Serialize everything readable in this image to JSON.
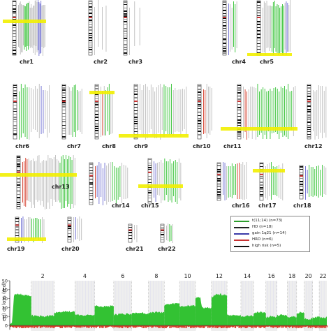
{
  "karyogram": {
    "chromosomes": [
      {
        "id": "chr1",
        "label": "chr1",
        "x": 4,
        "y": 0,
        "w": 62,
        "h": 80,
        "ly": 84,
        "lx": 28,
        "seed": 1,
        "tracks": 28,
        "hl": 28,
        "green": [
          0.2,
          0.4
        ],
        "blue": [
          0.72,
          0.88
        ]
      },
      {
        "id": "chr2",
        "label": "chr2",
        "x": 118,
        "y": 0,
        "w": 40,
        "h": 80,
        "ly": 84,
        "lx": 134,
        "seed": 2,
        "tracks": 4,
        "hl": -1,
        "green": [],
        "blue": []
      },
      {
        "id": "chr3",
        "label": "chr3",
        "x": 168,
        "y": 0,
        "w": 40,
        "h": 80,
        "ly": 84,
        "lx": 184,
        "seed": 3,
        "tracks": 3,
        "hl": -1,
        "green": [],
        "blue": []
      },
      {
        "id": "chr4",
        "label": "chr4",
        "x": 312,
        "y": 0,
        "w": 30,
        "h": 80,
        "ly": 84,
        "lx": 332,
        "seed": 4,
        "tracks": 6,
        "hl": -1,
        "green": [
          0.6,
          0.8
        ],
        "blue": [
          0.0,
          0.15
        ]
      },
      {
        "id": "chr5",
        "label": "chr5",
        "x": 354,
        "y": 0,
        "w": 64,
        "h": 80,
        "ly": 84,
        "lx": 372,
        "seed": 5,
        "tracks": 22,
        "hl": 76,
        "green": [
          0.3,
          0.8
        ],
        "blue": [
          0.85,
          0.95
        ]
      },
      {
        "id": "chr6",
        "label": "chr6",
        "x": 4,
        "y": 120,
        "w": 70,
        "h": 80,
        "ly": 205,
        "lx": 22,
        "seed": 6,
        "tracks": 16,
        "hl": -1,
        "green": [
          0.0,
          0.3
        ],
        "blue": [
          0.7,
          0.8
        ],
        "red": [
          0.05,
          0.15
        ]
      },
      {
        "id": "chr7",
        "label": "chr7",
        "x": 80,
        "y": 120,
        "w": 40,
        "h": 80,
        "ly": 205,
        "lx": 96,
        "seed": 7,
        "tracks": 10,
        "hl": -1,
        "green": [
          0.3,
          0.7
        ],
        "blue": []
      },
      {
        "id": "chr8",
        "label": "chr8",
        "x": 128,
        "y": 120,
        "w": 36,
        "h": 80,
        "ly": 205,
        "lx": 146,
        "seed": 8,
        "tracks": 8,
        "hl": 10,
        "green": [
          0.4,
          0.8
        ],
        "blue": [],
        "red": [
          0.05,
          0.2
        ]
      },
      {
        "id": "chr9",
        "label": "chr9",
        "x": 170,
        "y": 120,
        "w": 100,
        "h": 80,
        "ly": 205,
        "lx": 192,
        "seed": 9,
        "tracks": 26,
        "hl": 72,
        "green": [
          0.5,
          0.7
        ],
        "blue": []
      },
      {
        "id": "chr10",
        "label": "chr10",
        "x": 276,
        "y": 120,
        "w": 30,
        "h": 80,
        "ly": 205,
        "lx": 276,
        "seed": 10,
        "tracks": 6,
        "hl": -1,
        "green": [],
        "blue": [],
        "red": [
          0.0,
          0.2
        ]
      },
      {
        "id": "chr11",
        "label": "chr11",
        "x": 316,
        "y": 120,
        "w": 110,
        "h": 80,
        "ly": 205,
        "lx": 320,
        "seed": 11,
        "tracks": 30,
        "hl": 62,
        "green": [
          0.25,
          0.95
        ],
        "blue": [],
        "red": [
          0.02,
          0.1
        ]
      },
      {
        "id": "chr12",
        "label": "chr12",
        "x": 432,
        "y": 120,
        "w": 38,
        "h": 80,
        "ly": 205,
        "lx": 436,
        "seed": 12,
        "tracks": 8,
        "hl": -1,
        "green": [],
        "blue": []
      },
      {
        "id": "chr13",
        "label": "chr13",
        "x": 0,
        "y": 222,
        "w": 110,
        "h": 78,
        "ly": 263,
        "lx": 74,
        "seed": 13,
        "tracks": 36,
        "hl": 26,
        "green": [
          0.7,
          0.95
        ],
        "blue": [],
        "red": [
          0.0,
          0.1
        ]
      },
      {
        "id": "chr14",
        "label": "chr14",
        "x": 112,
        "y": 232,
        "w": 74,
        "h": 62,
        "ly": 290,
        "lx": 160,
        "seed": 14,
        "tracks": 18,
        "hl": -1,
        "green": [
          0.5,
          0.8
        ],
        "blue": [
          0.05,
          0.3
        ],
        "red": [
          0.0,
          0.1
        ]
      },
      {
        "id": "chr15",
        "label": "chr15",
        "x": 198,
        "y": 226,
        "w": 64,
        "h": 66,
        "ly": 290,
        "lx": 202,
        "seed": 15,
        "tracks": 16,
        "hl": 38,
        "green": [
          0.4,
          0.9
        ],
        "blue": [
          0.0,
          0.1
        ]
      },
      {
        "id": "chr16",
        "label": "chr16",
        "x": 298,
        "y": 232,
        "w": 58,
        "h": 56,
        "ly": 290,
        "lx": 332,
        "seed": 16,
        "tracks": 14,
        "hl": -1,
        "green": [
          0.2,
          0.6
        ],
        "blue": [
          0.0,
          0.1
        ],
        "red": [
          0.6,
          0.7
        ]
      },
      {
        "id": "chr17",
        "label": "chr17",
        "x": 362,
        "y": 232,
        "w": 46,
        "h": 56,
        "ly": 290,
        "lx": 370,
        "seed": 17,
        "tracks": 10,
        "hl": 10,
        "green": [
          0.3,
          0.7
        ],
        "blue": []
      },
      {
        "id": "chr18",
        "label": "chr18",
        "x": 418,
        "y": 236,
        "w": 52,
        "h": 50,
        "ly": 290,
        "lx": 420,
        "seed": 18,
        "tracks": 12,
        "hl": -1,
        "green": [
          0.1,
          0.9
        ],
        "blue": [
          0.0,
          0.1
        ]
      },
      {
        "id": "chr19",
        "label": "chr19",
        "x": 10,
        "y": 310,
        "w": 56,
        "h": 38,
        "ly": 352,
        "lx": 10,
        "seed": 19,
        "tracks": 14,
        "hl": 30,
        "green": [
          0.4,
          0.9
        ],
        "blue": [
          0.0,
          0.1
        ]
      },
      {
        "id": "chr20",
        "label": "chr20",
        "x": 90,
        "y": 310,
        "w": 30,
        "h": 38,
        "ly": 352,
        "lx": 88,
        "seed": 20,
        "tracks": 5,
        "hl": -1,
        "green": [],
        "blue": [
          0.1,
          0.3
        ]
      },
      {
        "id": "chr21",
        "label": "chr21",
        "x": 180,
        "y": 320,
        "w": 20,
        "h": 28,
        "ly": 352,
        "lx": 180,
        "seed": 21,
        "tracks": 2,
        "hl": -1,
        "green": [],
        "blue": []
      },
      {
        "id": "chr22",
        "label": "chr22",
        "x": 224,
        "y": 320,
        "w": 26,
        "h": 28,
        "ly": 352,
        "lx": 226,
        "seed": 22,
        "tracks": 5,
        "hl": -1,
        "green": [
          0.3,
          0.9
        ],
        "blue": []
      }
    ]
  },
  "legend": {
    "entries": [
      {
        "label": "t(11;14) (n=73)",
        "color": "#2e9e2e"
      },
      {
        "label": "HD (n=18)",
        "color": "#222222"
      },
      {
        "label": "gain 1q21 (n=14)",
        "color": "#3a3aa8"
      },
      {
        "label": "HRD (n=6)",
        "color": "#c83232"
      },
      {
        "label": "high risk (n=5)",
        "color": "#111111"
      }
    ]
  },
  "chart_data": {
    "type": "area",
    "ylabel": "en) or loss (red)",
    "ylim": [
      0,
      50
    ],
    "yticks": [
      0,
      10,
      20,
      30,
      40,
      50
    ],
    "top_labels": [
      "2",
      "4",
      "6",
      "8",
      "10",
      "12",
      "14",
      "16",
      "18",
      "20",
      "22"
    ],
    "chromosomes": [
      1,
      2,
      3,
      4,
      5,
      6,
      7,
      8,
      9,
      10,
      11,
      12,
      13,
      14,
      15,
      16,
      17,
      18,
      19,
      20,
      21,
      22
    ],
    "chr_bounds": [
      0,
      62,
      128,
      188,
      245,
      300,
      352,
      400,
      446,
      490,
      536,
      582,
      627,
      667,
      704,
      739,
      771,
      801,
      828,
      850,
      874,
      893,
      915
    ],
    "gain_series": [
      {
        "chr": 1,
        "levels": [
          [
            0,
            2
          ],
          [
            0.1,
            3
          ],
          [
            0.2,
            34
          ],
          [
            0.5,
            35
          ],
          [
            0.9,
            33
          ],
          [
            1.0,
            32
          ]
        ]
      },
      {
        "chr": 2,
        "levels": [
          [
            0,
            11
          ],
          [
            0.5,
            10
          ],
          [
            1.0,
            11
          ]
        ]
      },
      {
        "chr": 3,
        "levels": [
          [
            0,
            14
          ],
          [
            0.5,
            16
          ],
          [
            1.0,
            15
          ]
        ]
      },
      {
        "chr": 4,
        "levels": [
          [
            0,
            12
          ],
          [
            0.5,
            11
          ],
          [
            1.0,
            12
          ]
        ]
      },
      {
        "chr": 5,
        "levels": [
          [
            0,
            22
          ],
          [
            0.5,
            21
          ],
          [
            1.0,
            22
          ]
        ]
      },
      {
        "chr": 6,
        "levels": [
          [
            0,
            12
          ],
          [
            0.5,
            13
          ],
          [
            1.0,
            12
          ]
        ]
      },
      {
        "chr": 7,
        "levels": [
          [
            0,
            13
          ],
          [
            0.5,
            14
          ],
          [
            1.0,
            13
          ]
        ]
      },
      {
        "chr": 8,
        "levels": [
          [
            0,
            14
          ],
          [
            0.5,
            15
          ],
          [
            1.0,
            14
          ]
        ]
      },
      {
        "chr": 9,
        "levels": [
          [
            0,
            23
          ],
          [
            0.5,
            24
          ],
          [
            1.0,
            25
          ]
        ]
      },
      {
        "chr": 10,
        "levels": [
          [
            0,
            21
          ],
          [
            0.5,
            22
          ],
          [
            1.0,
            22
          ]
        ]
      },
      {
        "chr": 11,
        "levels": [
          [
            0,
            31
          ],
          [
            0.3,
            31
          ],
          [
            0.4,
            20
          ],
          [
            1.0,
            19
          ]
        ]
      },
      {
        "chr": 12,
        "levels": [
          [
            0,
            31
          ],
          [
            0.3,
            35
          ],
          [
            1.0,
            34
          ]
        ]
      },
      {
        "chr": 13,
        "levels": [
          [
            0,
            12
          ],
          [
            0.5,
            11
          ],
          [
            1.0,
            12
          ]
        ]
      },
      {
        "chr": 14,
        "levels": [
          [
            0,
            10
          ],
          [
            0.5,
            11
          ],
          [
            1.0,
            10
          ]
        ]
      },
      {
        "chr": 15,
        "levels": [
          [
            0,
            14
          ],
          [
            0.5,
            15
          ],
          [
            1.0,
            14
          ]
        ]
      },
      {
        "chr": 16,
        "levels": [
          [
            0,
            9
          ],
          [
            0.5,
            10
          ],
          [
            1.0,
            9
          ]
        ]
      },
      {
        "chr": 17,
        "levels": [
          [
            0,
            11
          ],
          [
            0.5,
            12
          ],
          [
            1.0,
            11
          ]
        ]
      },
      {
        "chr": 18,
        "levels": [
          [
            0,
            9
          ],
          [
            0.5,
            10
          ],
          [
            1.0,
            9
          ]
        ]
      },
      {
        "chr": 19,
        "levels": [
          [
            0,
            13
          ],
          [
            0.5,
            15
          ],
          [
            1.0,
            14
          ]
        ]
      },
      {
        "chr": 20,
        "levels": [
          [
            0,
            8
          ],
          [
            0.5,
            7
          ],
          [
            1.0,
            8
          ]
        ]
      },
      {
        "chr": 21,
        "levels": [
          [
            0,
            10
          ],
          [
            0.5,
            9
          ],
          [
            1.0,
            10
          ]
        ]
      },
      {
        "chr": 22,
        "levels": [
          [
            0,
            9
          ],
          [
            0.5,
            8
          ],
          [
            1.0,
            9
          ]
        ]
      }
    ],
    "loss_depth": 3
  },
  "colors": {
    "gain": "#33c233",
    "loss": "#d43c2a",
    "highlight": "#f2f000",
    "track_gray": "#bdbdbd",
    "shade": "#eeeeee"
  }
}
